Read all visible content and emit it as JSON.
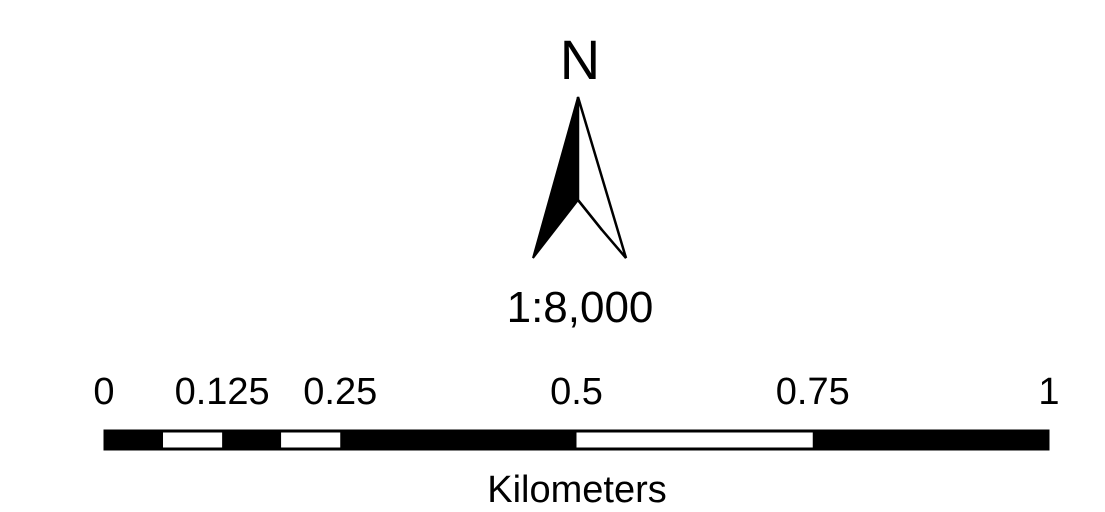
{
  "north_arrow": {
    "letter": "N",
    "icon": "north-arrow-icon"
  },
  "scale": {
    "ratio": "1:8,000",
    "units": "Kilometers",
    "ticks": [
      "0",
      "0.125",
      "0.25",
      "0.5",
      "0.75",
      "1"
    ],
    "tick_values": [
      0,
      0.125,
      0.25,
      0.5,
      0.75,
      1
    ],
    "subdivision_values": [
      0,
      0.0625,
      0.125,
      0.1875,
      0.25,
      0.5,
      0.75,
      1
    ],
    "bar_colors": [
      "#000000",
      "#ffffff"
    ]
  }
}
